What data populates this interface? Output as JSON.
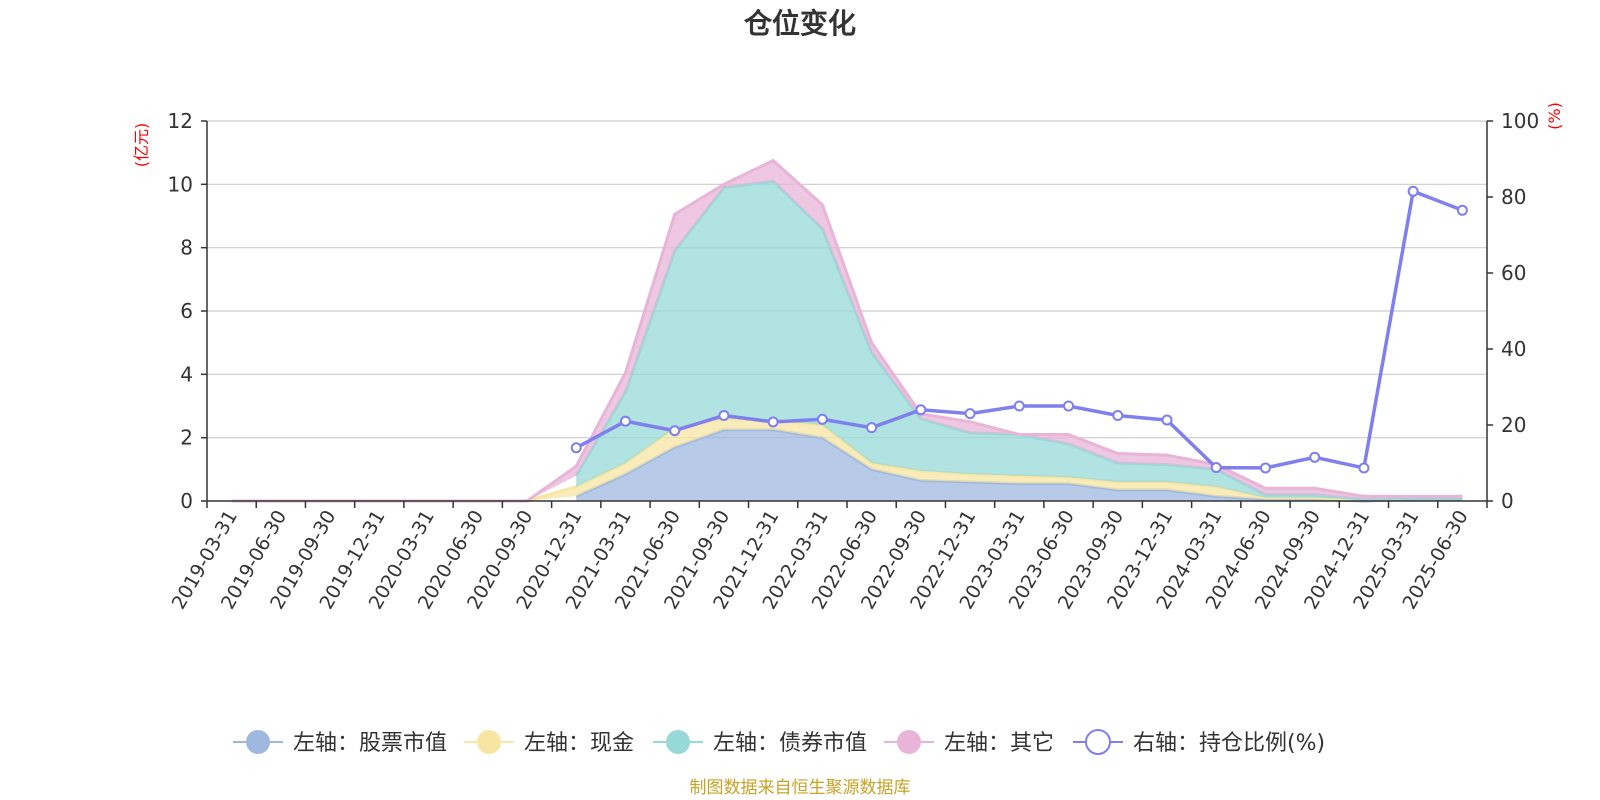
{
  "chart_data": {
    "type": "area",
    "title": "仓位变化",
    "left_axis_unit": "(亿元)",
    "right_axis_unit": "(%)",
    "ylim_left": [
      0,
      12
    ],
    "yticks_left": [
      "0",
      "2",
      "4",
      "6",
      "8",
      "10",
      "12"
    ],
    "ylim_right": [
      0,
      100
    ],
    "yticks_right": [
      "0",
      "20",
      "40",
      "60",
      "80",
      "100"
    ],
    "grid": true,
    "legend_position": "bottom",
    "categories": [
      "2019-03-31",
      "2019-06-30",
      "2019-09-30",
      "2019-12-31",
      "2020-03-31",
      "2020-06-30",
      "2020-09-30",
      "2020-12-31",
      "2021-03-31",
      "2021-06-30",
      "2021-09-30",
      "2021-12-31",
      "2022-03-31",
      "2022-06-30",
      "2022-09-30",
      "2022-12-31",
      "2023-03-31",
      "2023-06-30",
      "2023-09-30",
      "2023-12-31",
      "2024-03-31",
      "2024-06-30",
      "2024-09-30",
      "2024-12-31",
      "2025-03-31",
      "2025-06-30"
    ],
    "series": [
      {
        "name": "左轴：股票市值",
        "axis": "left",
        "kind": "stack",
        "color": "#9fb8e0",
        "values": [
          null,
          null,
          null,
          null,
          null,
          null,
          null,
          0.15,
          0.85,
          1.7,
          2.25,
          2.25,
          2.0,
          1.0,
          0.65,
          0.6,
          0.55,
          0.55,
          0.35,
          0.35,
          0.15,
          0.05,
          0.05,
          0.0,
          0.05,
          0.05
        ]
      },
      {
        "name": "左轴：现金",
        "axis": "left",
        "kind": "stack",
        "color": "#f7e6a3",
        "values": [
          0.0,
          0.0,
          0.0,
          0.0,
          0.0,
          0.0,
          0.0,
          0.3,
          0.35,
          0.6,
          0.35,
          0.3,
          0.4,
          0.2,
          0.3,
          0.25,
          0.25,
          0.2,
          0.25,
          0.25,
          0.3,
          0.05,
          0.05,
          0.05,
          0.05,
          0.05
        ]
      },
      {
        "name": "左轴：债券市值",
        "axis": "left",
        "kind": "stack",
        "color": "#97d9d8",
        "values": [
          null,
          null,
          null,
          null,
          null,
          null,
          null,
          0.35,
          2.25,
          5.6,
          7.3,
          7.55,
          6.2,
          3.5,
          1.65,
          1.3,
          1.3,
          1.05,
          0.6,
          0.55,
          0.55,
          0.1,
          0.1,
          0.0,
          0.0,
          0.0
        ]
      },
      {
        "name": "左轴：其它",
        "axis": "left",
        "kind": "stack",
        "color": "#e8b4d8",
        "values": [
          0.0,
          0.0,
          0.0,
          0.0,
          0.0,
          0.0,
          0.0,
          0.3,
          0.6,
          1.15,
          0.1,
          0.65,
          0.75,
          0.3,
          0.15,
          0.35,
          0.0,
          0.3,
          0.3,
          0.3,
          0.15,
          0.2,
          0.2,
          0.1,
          0.05,
          0.05
        ]
      },
      {
        "name": "右轴：持仓比例(%)",
        "axis": "right",
        "kind": "line",
        "color": "#7f7fee",
        "values": [
          null,
          null,
          null,
          null,
          null,
          null,
          null,
          14.0,
          21.0,
          18.5,
          22.5,
          20.8,
          21.5,
          19.3,
          24.0,
          23.0,
          25.0,
          25.0,
          22.5,
          21.3,
          8.8,
          8.7,
          11.5,
          8.7,
          81.5,
          76.5
        ]
      }
    ]
  },
  "source_note": "制图数据来自恒生聚源数据库"
}
